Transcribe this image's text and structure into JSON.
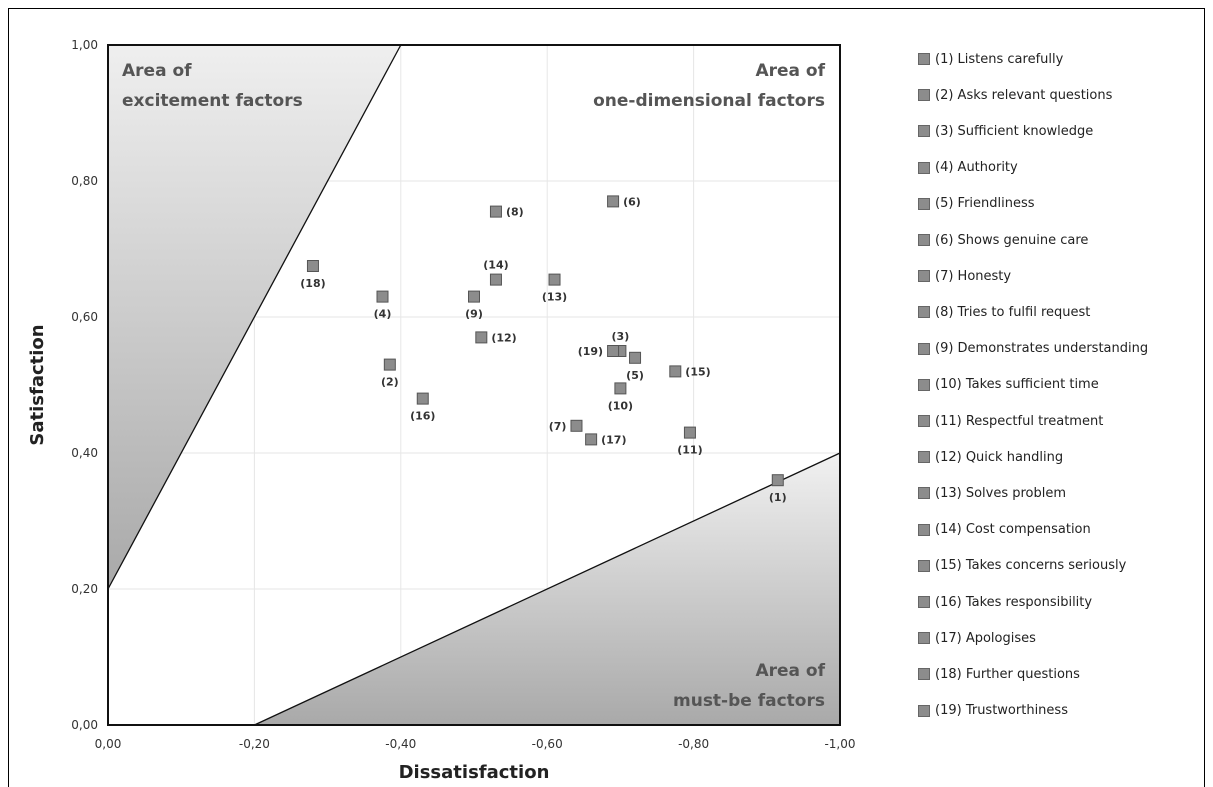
{
  "chart_data": {
    "type": "scatter",
    "xlabel": "Dissatisfaction",
    "ylabel": "Satisfaction",
    "xlim": [
      0,
      -1
    ],
    "ylim": [
      0,
      1
    ],
    "x_ticks": [
      "0,00",
      "-0,20",
      "-0,40",
      "-0,60",
      "-0,80",
      "-1,00"
    ],
    "y_ticks": [
      "0,00",
      "0,20",
      "0,40",
      "0,60",
      "0,80",
      "1,00"
    ],
    "x_tick_values": [
      0,
      -0.2,
      -0.4,
      -0.6,
      -0.8,
      -1.0
    ],
    "y_tick_values": [
      0,
      0.2,
      0.4,
      0.6,
      0.8,
      1.0
    ],
    "grid": true,
    "legend_position": "right",
    "marker_color": "#8c8c8c",
    "areas": {
      "excitement": {
        "line1": "Area of",
        "line2": "excitement factors",
        "boundary": [
          [
            0,
            0.2
          ],
          [
            -0.4,
            1.0
          ]
        ]
      },
      "one_dimensional": {
        "line1": "Area of",
        "line2": "one-dimensional factors"
      },
      "must_be": {
        "line1": "Area of",
        "line2": "must-be factors",
        "boundary": [
          [
            -0.2,
            0
          ],
          [
            -1.0,
            0.4
          ]
        ]
      }
    },
    "points": [
      {
        "label": "(1)",
        "name": "(1) Listens carefully",
        "x": -0.915,
        "y": 0.36,
        "lp": "below"
      },
      {
        "label": "(2)",
        "name": "(2) Asks relevant questions",
        "x": -0.385,
        "y": 0.53,
        "lp": "below"
      },
      {
        "label": "(3)",
        "name": "(3) Sufficient knowledge",
        "x": -0.7,
        "y": 0.55,
        "lp": "above"
      },
      {
        "label": "(4)",
        "name": "(4) Authority",
        "x": -0.375,
        "y": 0.63,
        "lp": "below"
      },
      {
        "label": "(5)",
        "name": "(5) Friendliness",
        "x": -0.72,
        "y": 0.54,
        "lp": "below"
      },
      {
        "label": "(6)",
        "name": "(6) Shows genuine care",
        "x": -0.69,
        "y": 0.77,
        "lp": "right"
      },
      {
        "label": "(7)",
        "name": "(7) Honesty",
        "x": -0.64,
        "y": 0.44,
        "lp": "left"
      },
      {
        "label": "(8)",
        "name": "(8) Tries to fulfil request",
        "x": -0.53,
        "y": 0.755,
        "lp": "right"
      },
      {
        "label": "(9)",
        "name": "(9) Demonstrates understanding",
        "x": -0.5,
        "y": 0.63,
        "lp": "below"
      },
      {
        "label": "(10)",
        "name": "(10) Takes sufficient time",
        "x": -0.7,
        "y": 0.495,
        "lp": "below"
      },
      {
        "label": "(11)",
        "name": "(11) Respectful treatment",
        "x": -0.795,
        "y": 0.43,
        "lp": "below"
      },
      {
        "label": "(12)",
        "name": "(12) Quick handling",
        "x": -0.51,
        "y": 0.57,
        "lp": "right"
      },
      {
        "label": "(13)",
        "name": "(13) Solves problem",
        "x": -0.61,
        "y": 0.655,
        "lp": "below"
      },
      {
        "label": "(14)",
        "name": "(14) Cost compensation",
        "x": -0.53,
        "y": 0.655,
        "lp": "above"
      },
      {
        "label": "(15)",
        "name": "(15) Takes concerns seriously",
        "x": -0.775,
        "y": 0.52,
        "lp": "right"
      },
      {
        "label": "(16)",
        "name": "(16) Takes responsibility",
        "x": -0.43,
        "y": 0.48,
        "lp": "below"
      },
      {
        "label": "(17)",
        "name": "(17) Apologises",
        "x": -0.66,
        "y": 0.42,
        "lp": "right"
      },
      {
        "label": "(18)",
        "name": "(18) Further questions",
        "x": -0.28,
        "y": 0.675,
        "lp": "below"
      },
      {
        "label": "(19)",
        "name": "(19) Trustworthiness",
        "x": -0.69,
        "y": 0.55,
        "lp": "left"
      }
    ]
  }
}
